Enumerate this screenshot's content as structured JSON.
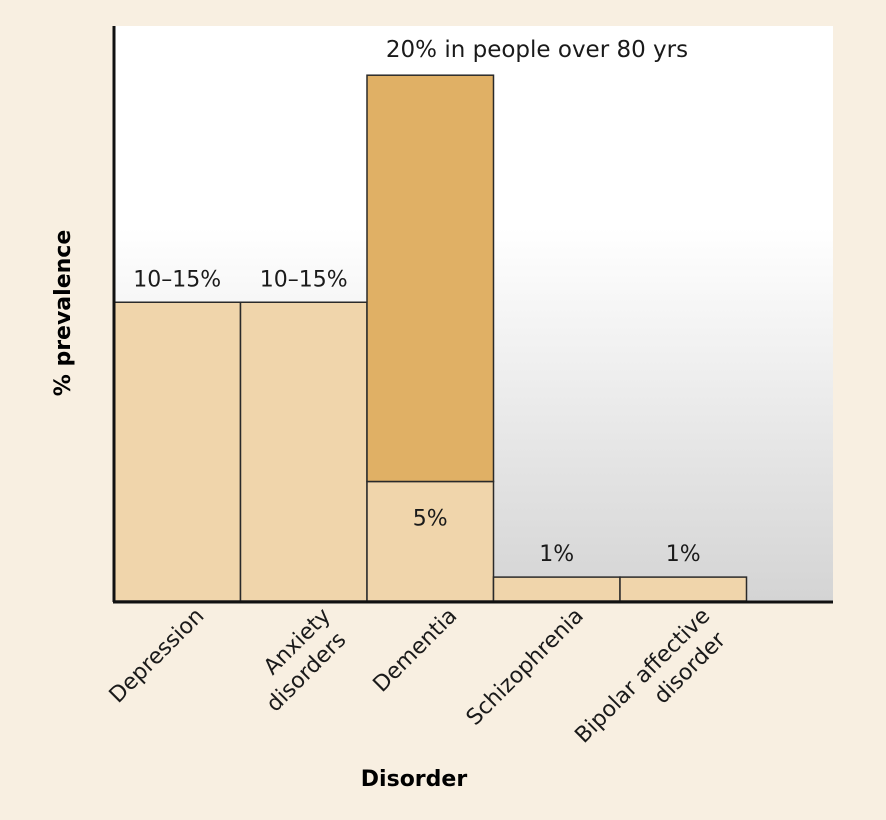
{
  "chart_data": {
    "type": "bar",
    "title": "",
    "xlabel": "Disorder",
    "ylabel": "% prevalence",
    "categories": [
      "Depression",
      "Anxiety disorders",
      "Dementia",
      "Schizophrenia",
      "Bipolar affective disorder"
    ],
    "category_lines": [
      [
        "Depression"
      ],
      [
        "Anxiety",
        "disorders"
      ],
      [
        "Dementia"
      ],
      [
        "Schizophrenia"
      ],
      [
        "Bipolar affective",
        "disorder"
      ]
    ],
    "series": [
      {
        "values": [
          12.5,
          12.5,
          5,
          1,
          1
        ]
      },
      {
        "values": [
          0,
          0,
          17,
          0,
          0
        ]
      }
    ],
    "data_labels": [
      "10–15%",
      "10–15%",
      "5%",
      "1%",
      "1%"
    ],
    "annotation": "20% in people over 80 yrs",
    "ylim": [
      0,
      22
    ],
    "grid": false,
    "colors": {
      "base": "#f0d5ab",
      "upper": "#e0b065",
      "bar_stroke": "#2a2a2a",
      "axis": "#111111",
      "text": "#1a1a1a",
      "plot_gradient_top": "#ffffff",
      "plot_gradient_bottom": "#d4d4d4",
      "page_bg": "#f8efe1"
    }
  }
}
